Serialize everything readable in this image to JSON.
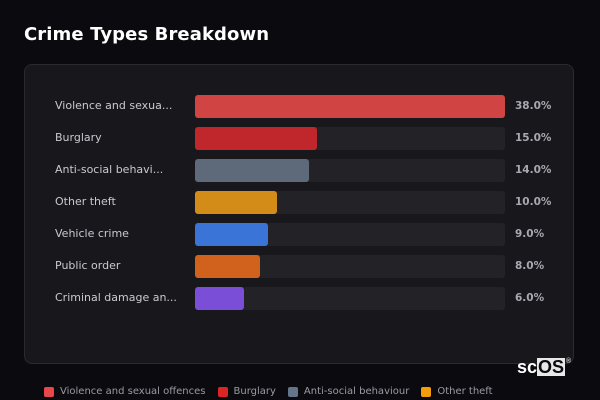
{
  "title": "Crime Types Breakdown",
  "chart_data": {
    "type": "bar",
    "orientation": "horizontal",
    "title": "Crime Types Breakdown",
    "categories": [
      "Violence and sexual offences",
      "Burglary",
      "Anti-social behaviour",
      "Other theft",
      "Vehicle crime",
      "Public order",
      "Criminal damage and arson"
    ],
    "display_labels": [
      "Violence and sexua...",
      "Burglary",
      "Anti-social behavi...",
      "Other theft",
      "Vehicle crime",
      "Public order",
      "Criminal damage an..."
    ],
    "values": [
      38.0,
      15.0,
      14.0,
      10.0,
      9.0,
      8.0,
      6.0
    ],
    "value_labels": [
      "38.0%",
      "15.0%",
      "14.0%",
      "10.0%",
      "9.0%",
      "8.0%",
      "6.0%"
    ],
    "colors": [
      "#d04444",
      "#c0272d",
      "#5e6a7a",
      "#d38c18",
      "#3a74d6",
      "#d0621e",
      "#7a4ed6"
    ],
    "xlim": [
      0,
      38
    ],
    "unit": "%"
  },
  "legend": [
    {
      "label": "Violence and sexual offences",
      "color": "#e8474c"
    },
    {
      "label": "Burglary",
      "color": "#dc2626"
    },
    {
      "label": "Anti-social behaviour",
      "color": "#64748b"
    },
    {
      "label": "Other theft",
      "color": "#f59e0b"
    }
  ],
  "logo": {
    "left": "sc",
    "right": "OS",
    "mark": "®"
  }
}
